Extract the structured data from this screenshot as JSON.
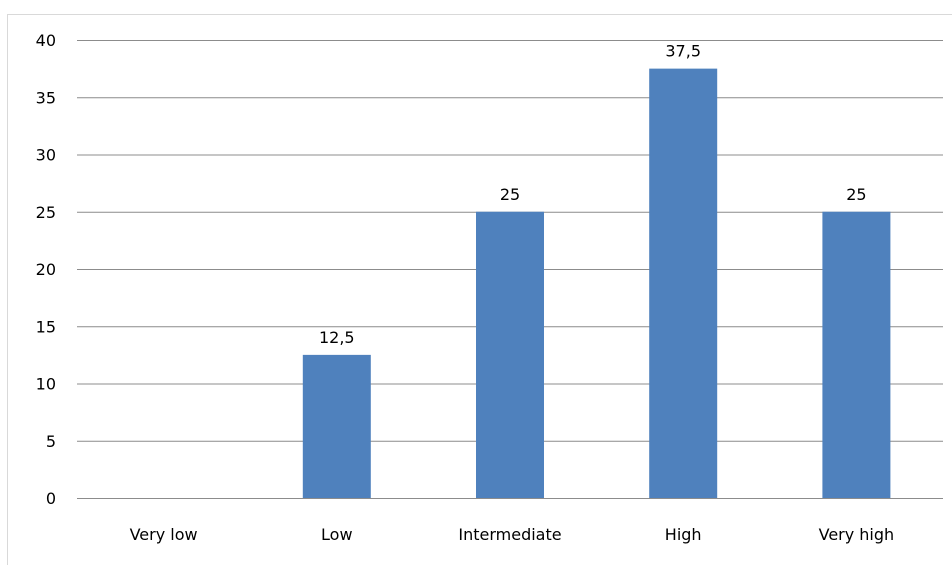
{
  "chart_data": {
    "type": "bar",
    "categories": [
      "Very low",
      "Low",
      "Intermediate",
      "High",
      "Very high"
    ],
    "values": [
      0,
      12.5,
      25,
      37.5,
      25
    ],
    "data_labels": [
      "",
      "12,5",
      "25",
      "37,5",
      "25"
    ],
    "y_ticks": [
      "0",
      "5",
      "10",
      "15",
      "20",
      "25",
      "30",
      "35",
      "40"
    ],
    "ylim": [
      0,
      40
    ],
    "title": "",
    "xlabel": "",
    "ylabel": "",
    "grid": true,
    "legend": "none",
    "colors": {
      "bar": "#4f81bd",
      "grid": "#8c8c8c",
      "frame": "#d9d9d9"
    }
  }
}
